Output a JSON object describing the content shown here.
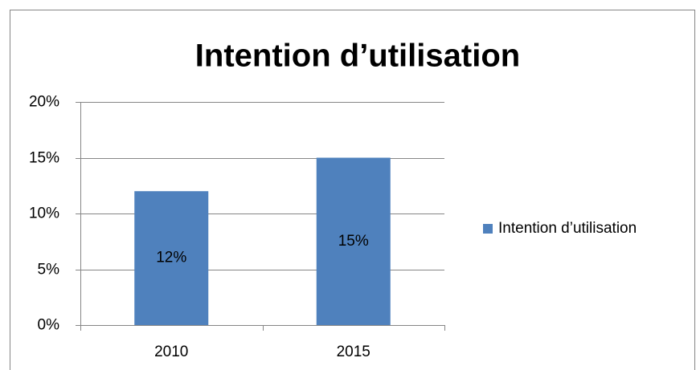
{
  "chart_data": {
    "type": "bar",
    "title": "Intention d’utilisation",
    "categories": [
      "2010",
      "2015"
    ],
    "series": [
      {
        "name": "Intention d’utilisation",
        "color": "#4f81bd",
        "values": [
          12,
          15
        ],
        "value_labels": [
          "12%",
          "15%"
        ]
      }
    ],
    "ylim": [
      0,
      20
    ],
    "yticks": [
      {
        "value": 0,
        "label": "0%"
      },
      {
        "value": 5,
        "label": "5%"
      },
      {
        "value": 10,
        "label": "10%"
      },
      {
        "value": 15,
        "label": "15%"
      },
      {
        "value": 20,
        "label": "20%"
      }
    ],
    "grid": true,
    "legend": "right"
  }
}
